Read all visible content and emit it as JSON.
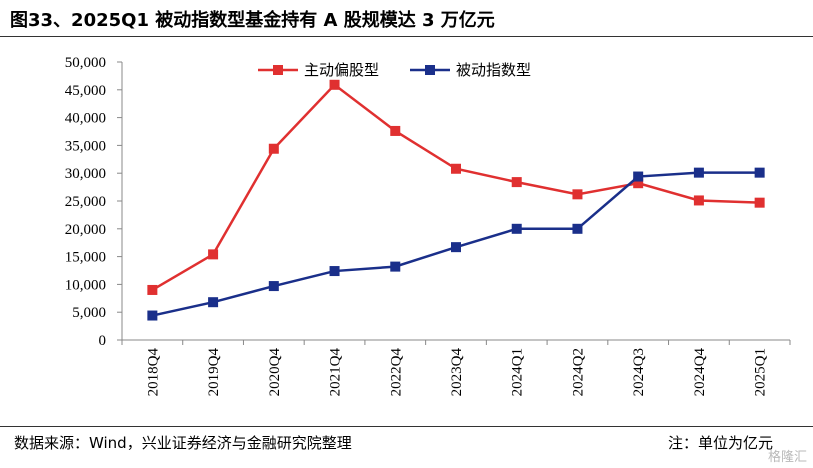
{
  "title": "图33、2025Q1 被动指数型基金持有 A 股规模达 3 万亿元",
  "source": "数据来源：Wind，兴业证券经济与金融研究院整理",
  "unit_note": "注：单位为亿元",
  "watermark": "格隆汇",
  "chart_data": {
    "type": "line",
    "categories": [
      "2018Q4",
      "2019Q4",
      "2020Q4",
      "2021Q4",
      "2022Q4",
      "2023Q4",
      "2024Q1",
      "2024Q2",
      "2024Q3",
      "2024Q4",
      "2025Q1"
    ],
    "series": [
      {
        "name": "主动偏股型",
        "color": "#e03030",
        "marker": "square",
        "values": [
          9000,
          15400,
          34400,
          45900,
          37600,
          30800,
          28400,
          26200,
          28200,
          25100,
          24700
        ]
      },
      {
        "name": "被动指数型",
        "color": "#1a2f8a",
        "marker": "square",
        "values": [
          4400,
          6800,
          9700,
          12400,
          13200,
          16700,
          20000,
          20000,
          29400,
          30100,
          30100
        ]
      }
    ],
    "yticks": [
      "0",
      "5,000",
      "10,000",
      "15,000",
      "20,000",
      "25,000",
      "30,000",
      "35,000",
      "40,000",
      "45,000",
      "50,000"
    ],
    "ylim": [
      0,
      50000
    ],
    "legend_position": "top-center",
    "grid": false
  }
}
